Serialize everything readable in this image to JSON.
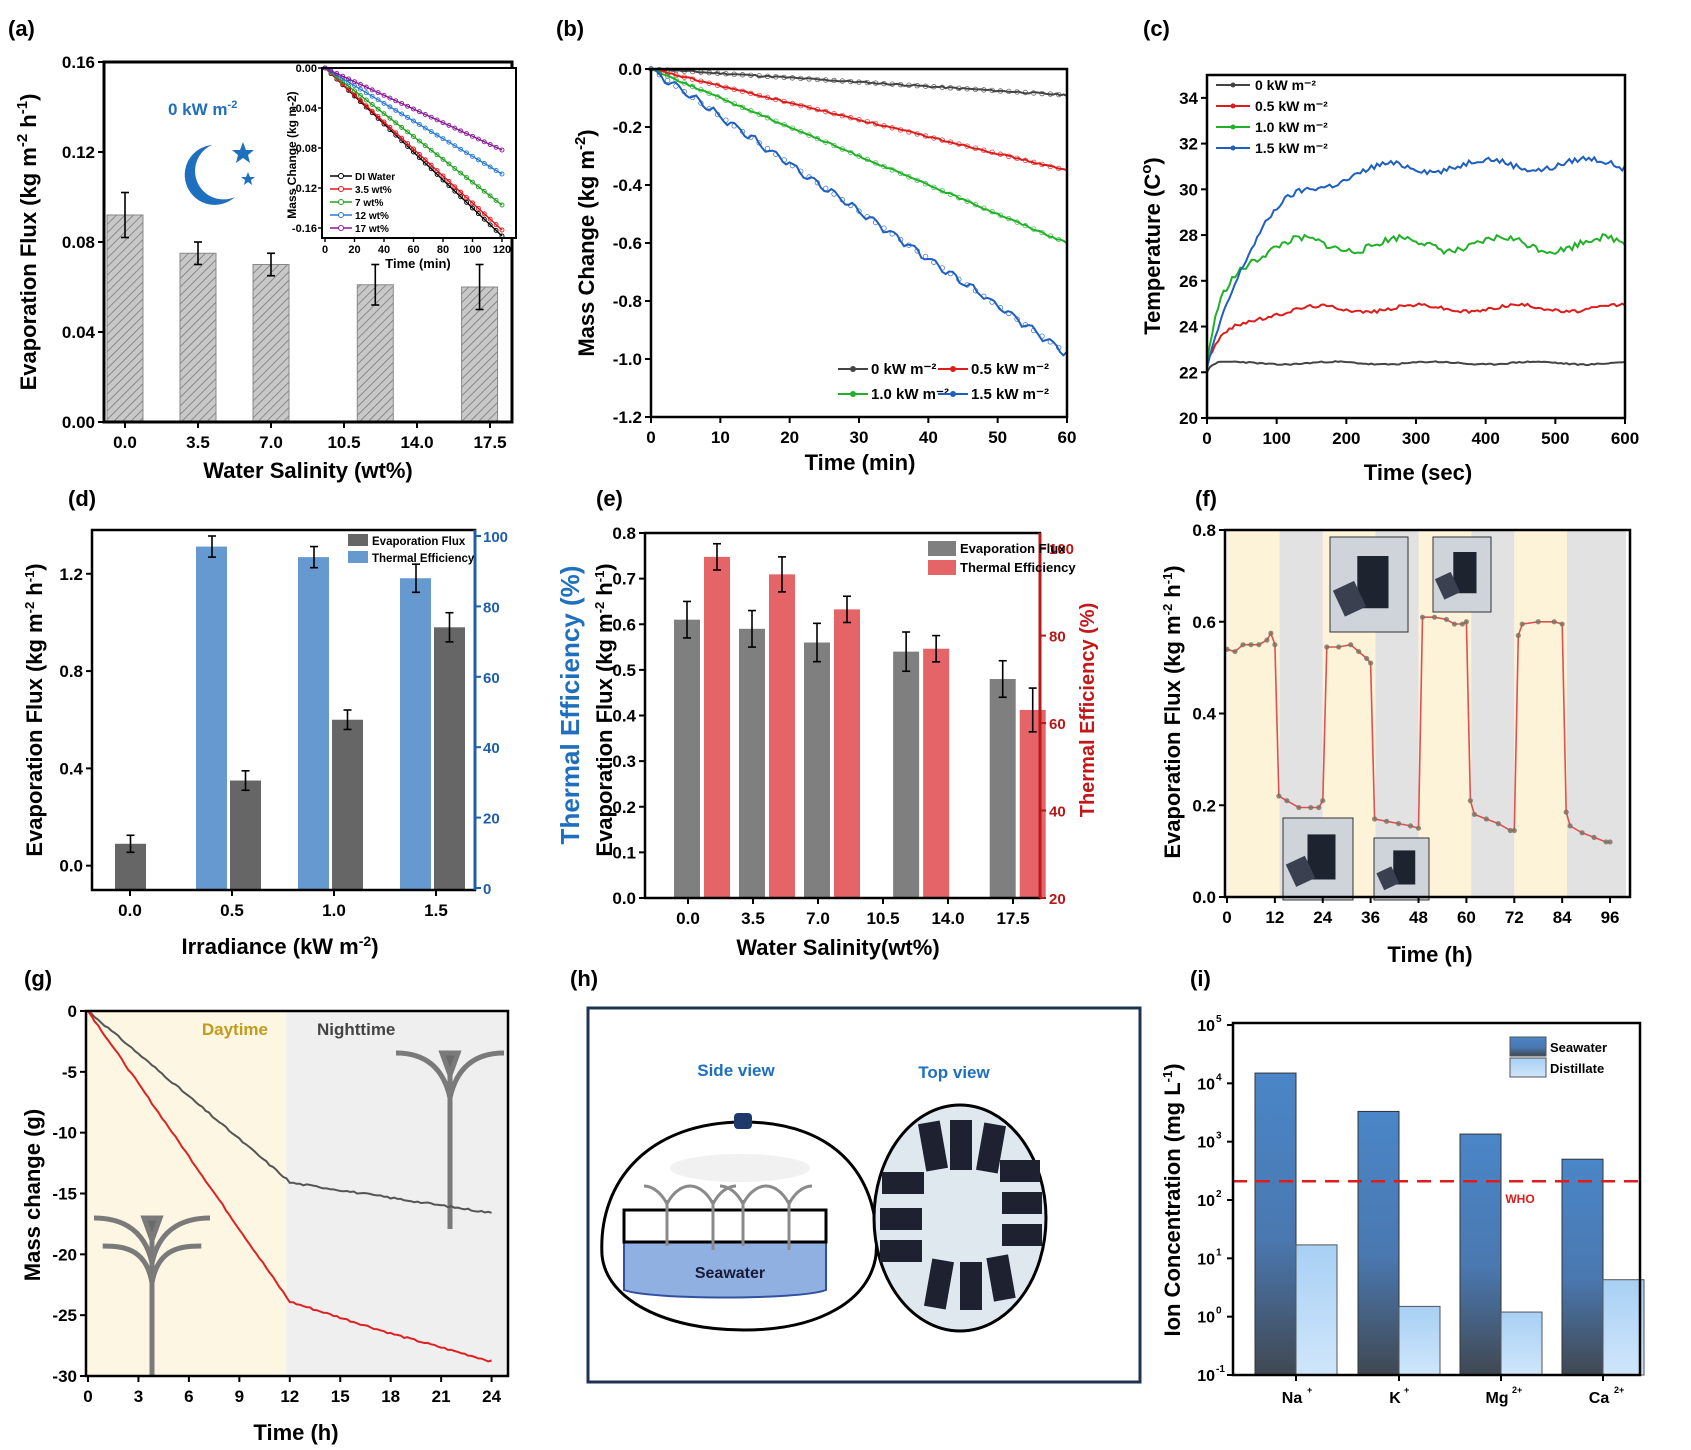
{
  "panels": {
    "a": {
      "label": "(a)"
    },
    "b": {
      "label": "(b)"
    },
    "c": {
      "label": "(c)"
    },
    "d": {
      "label": "(d)"
    },
    "e": {
      "label": "(e)"
    },
    "f": {
      "label": "(f)"
    },
    "g": {
      "label": "(g)"
    },
    "h": {
      "label": "(h)"
    },
    "i": {
      "label": "(i)"
    }
  },
  "chart_data": [
    {
      "id": "a",
      "type": "bar",
      "title": "",
      "annotation": "0 kW m-2",
      "xlabel": "Water Salinity (wt%)",
      "ylabel": "Evaporation Flux (kg m-2 h-1)",
      "xticks": [
        "0.0",
        "3.5",
        "7.0",
        "10.5",
        "14.0",
        "17.5"
      ],
      "xlim": [
        0,
        17.5
      ],
      "yticks": [
        "0.00",
        "0.04",
        "0.08",
        "0.12",
        "0.16"
      ],
      "ylim": [
        0,
        0.16
      ],
      "bars": [
        {
          "x": 0,
          "value": 0.092,
          "err": 0.01
        },
        {
          "x": 3.5,
          "value": 0.075,
          "err": 0.005
        },
        {
          "x": 7.0,
          "value": 0.07,
          "err": 0.005
        },
        {
          "x": 12.0,
          "value": 0.061,
          "err": 0.009
        },
        {
          "x": 17.0,
          "value": 0.06,
          "err": 0.01
        }
      ],
      "inset": {
        "type": "line",
        "xlabel": "Time (min)",
        "ylabel": "Mass Change (kg m-2)",
        "xticks": [
          "0",
          "20",
          "40",
          "60",
          "80",
          "100",
          "120"
        ],
        "xlim": [
          0,
          120
        ],
        "yticks": [
          "0.00",
          "-0.04",
          "-0.08",
          "-0.12",
          "-0.16"
        ],
        "ylim": [
          -0.17,
          0
        ],
        "series": [
          {
            "name": "DI Water",
            "color": "#000000",
            "end": -0.168
          },
          {
            "name": "3.5 wt%",
            "color": "#e8141c",
            "end": -0.162
          },
          {
            "name": "7 wt%",
            "color": "#22a022",
            "end": -0.137
          },
          {
            "name": "12 wt%",
            "color": "#2a7ad8",
            "end": -0.106
          },
          {
            "name": "17 wt%",
            "color": "#8a1a9a",
            "end": -0.082
          }
        ]
      }
    },
    {
      "id": "b",
      "type": "line",
      "xlabel": "Time (min)",
      "ylabel": "Mass Change (kg m-2)",
      "xticks": [
        "0",
        "10",
        "20",
        "30",
        "40",
        "50",
        "60"
      ],
      "xlim": [
        0,
        60
      ],
      "yticks": [
        "0.0",
        "-0.2",
        "-0.4",
        "-0.6",
        "-0.8",
        "-1.0",
        "-1.2"
      ],
      "ylim": [
        -1.2,
        0
      ],
      "legend_position": "bottom-right",
      "series": [
        {
          "name": "0 kW m-2",
          "color": "#444444",
          "end": -0.09
        },
        {
          "name": "0.5 kW m-2",
          "color": "#dd1c1c",
          "end": -0.35
        },
        {
          "name": "1.0 kW m-2",
          "color": "#22b02a",
          "end": -0.6
        },
        {
          "name": "1.5 kW m-2",
          "color": "#1f5fbf",
          "end": -0.98
        }
      ]
    },
    {
      "id": "c",
      "type": "line",
      "xlabel": "Time (sec)",
      "ylabel": "Temperature (C°)",
      "xticks": [
        "0",
        "100",
        "200",
        "300",
        "400",
        "500",
        "600"
      ],
      "xlim": [
        0,
        600
      ],
      "yticks": [
        "20",
        "22",
        "24",
        "26",
        "28",
        "30",
        "32",
        "34"
      ],
      "ylim": [
        20,
        35
      ],
      "legend_position": "top-left",
      "series": [
        {
          "name": "0 kW m-2",
          "color": "#444444",
          "start": 22.0,
          "plateau": 22.4,
          "tau": 5
        },
        {
          "name": "0.5 kW m-2",
          "color": "#dd1c1c",
          "start": 22.5,
          "plateau": 24.8,
          "tau": 40
        },
        {
          "name": "1.0 kW m-2",
          "color": "#22b02a",
          "start": 22.5,
          "plateau": 27.6,
          "tau": 28
        },
        {
          "name": "1.5 kW m-2",
          "color": "#1f5fbf",
          "start": 22.2,
          "plateau": 31.1,
          "tau": 70
        }
      ]
    },
    {
      "id": "d",
      "type": "bar",
      "xlabel": "Irradiance (kW m-2)",
      "ylabel": "Evaporation Flux (kg m-2 h-1)",
      "ylabel_right": "Thermal Efficiency (%)",
      "categories": [
        "0.0",
        "0.5",
        "1.0",
        "1.5"
      ],
      "yticks": [
        "0.0",
        "0.4",
        "0.8",
        "1.2"
      ],
      "ylim": [
        -0.1,
        1.38
      ],
      "yticks_right": [
        "0",
        "20",
        "40",
        "60",
        "80",
        "100"
      ],
      "ylim_right": [
        0,
        100
      ],
      "legend_position": "top-right",
      "series": [
        {
          "name": "Evaporation Flux",
          "color": "#666666",
          "values": [
            0.09,
            0.35,
            0.6,
            0.98
          ],
          "errors": [
            0.035,
            0.04,
            0.04,
            0.06
          ],
          "axis": "left"
        },
        {
          "name": "Thermal Efficiency",
          "color": "#6699d0",
          "values": [
            null,
            97,
            94,
            88
          ],
          "errors": [
            null,
            3,
            3,
            4
          ],
          "axis": "right"
        }
      ]
    },
    {
      "id": "e",
      "type": "bar",
      "xlabel": "Water Salinity(wt%)",
      "ylabel": "Evaporation Flux (kg m-2 h-1)",
      "ylabel_right": "Thermal Efficiency (%)",
      "xticks": [
        "0.0",
        "3.5",
        "7.0",
        "10.5",
        "14.0",
        "17.5"
      ],
      "yticks": [
        "0.0",
        "0.1",
        "0.2",
        "0.3",
        "0.4",
        "0.5",
        "0.6",
        "0.7",
        "0.8"
      ],
      "ylim": [
        0,
        0.8
      ],
      "yticks_right": [
        "20",
        "40",
        "60",
        "80",
        "100"
      ],
      "ylim_right": [
        20,
        103
      ],
      "legend_position": "top-right",
      "series": [
        {
          "name": "Evaporation Flux",
          "color": "#7f7f7f",
          "x": [
            0,
            3.5,
            7,
            11.8,
            17
          ],
          "values": [
            0.61,
            0.59,
            0.56,
            0.54,
            0.48
          ],
          "errors": [
            0.04,
            0.04,
            0.042,
            0.043,
            0.04
          ],
          "axis": "left"
        },
        {
          "name": "Thermal Efficiency",
          "color": "#e46467",
          "x": [
            0,
            3.5,
            7,
            11.8,
            17
          ],
          "values": [
            98,
            94,
            86,
            77,
            63
          ],
          "errors": [
            3,
            4,
            3,
            3,
            5
          ],
          "axis": "right"
        }
      ]
    },
    {
      "id": "f",
      "type": "line",
      "xlabel": "Time (h)",
      "ylabel": "Evaporation Flux (kg m-2 h-1)",
      "xticks": [
        "0",
        "12",
        "24",
        "36",
        "48",
        "60",
        "72",
        "84",
        "96"
      ],
      "xlim": [
        0,
        100
      ],
      "yticks": [
        "0.0",
        "0.2",
        "0.4",
        "0.6",
        "0.8"
      ],
      "ylim": [
        0,
        0.8
      ],
      "day_bands": [
        [
          0,
          12
        ],
        [
          24,
          36
        ],
        [
          48,
          60
        ],
        [
          72,
          84
        ]
      ],
      "night_bands": [
        [
          12,
          24
        ],
        [
          36,
          48
        ],
        [
          60,
          72
        ],
        [
          84,
          100
        ]
      ],
      "series": [
        {
          "name": "flux",
          "color": "#7a7060",
          "line_color": "#e05050",
          "points": [
            [
              0,
              0.54
            ],
            [
              2,
              0.535
            ],
            [
              4,
              0.55
            ],
            [
              6,
              0.55
            ],
            [
              8,
              0.55
            ],
            [
              10,
              0.56
            ],
            [
              11,
              0.575
            ],
            [
              12,
              0.55
            ],
            [
              13,
              0.22
            ],
            [
              15,
              0.21
            ],
            [
              18,
              0.195
            ],
            [
              21,
              0.195
            ],
            [
              23,
              0.195
            ],
            [
              24,
              0.21
            ],
            [
              25,
              0.545
            ],
            [
              28,
              0.545
            ],
            [
              31,
              0.55
            ],
            [
              33,
              0.535
            ],
            [
              35,
              0.52
            ],
            [
              36,
              0.51
            ],
            [
              37,
              0.17
            ],
            [
              40,
              0.165
            ],
            [
              43,
              0.16
            ],
            [
              46,
              0.155
            ],
            [
              48,
              0.15
            ],
            [
              49,
              0.61
            ],
            [
              52,
              0.61
            ],
            [
              55,
              0.605
            ],
            [
              57,
              0.595
            ],
            [
              59,
              0.595
            ],
            [
              60,
              0.6
            ],
            [
              61,
              0.21
            ],
            [
              62,
              0.18
            ],
            [
              65,
              0.17
            ],
            [
              68,
              0.16
            ],
            [
              71,
              0.145
            ],
            [
              72,
              0.145
            ],
            [
              73,
              0.57
            ],
            [
              74,
              0.595
            ],
            [
              78,
              0.6
            ],
            [
              82,
              0.6
            ],
            [
              84,
              0.595
            ],
            [
              85,
              0.185
            ],
            [
              86,
              0.155
            ],
            [
              89,
              0.14
            ],
            [
              92,
              0.13
            ],
            [
              95,
              0.12
            ],
            [
              96,
              0.12
            ]
          ]
        }
      ]
    },
    {
      "id": "g",
      "type": "line",
      "xlabel": "Time (h)",
      "ylabel": "Mass change (g)",
      "xticks": [
        "0",
        "3",
        "6",
        "9",
        "12",
        "15",
        "18",
        "21",
        "24"
      ],
      "xlim": [
        0,
        24.5
      ],
      "yticks": [
        "0",
        "-5",
        "-10",
        "-15",
        "-20",
        "-25",
        "-30"
      ],
      "ylim": [
        -30,
        0
      ],
      "annotations": [
        {
          "text": "Daytime",
          "color": "#c49a1a"
        },
        {
          "text": "Nighttime",
          "color": "#444444"
        }
      ],
      "series": [
        {
          "name": "single-branch",
          "color": "#555555",
          "points": [
            [
              0,
              0
            ],
            [
              11.8,
              -13.8
            ],
            [
              12,
              -14.1
            ],
            [
              24,
              -16.6
            ]
          ]
        },
        {
          "name": "multi-branch",
          "color": "#dd2222",
          "points": [
            [
              0,
              0
            ],
            [
              11.8,
              -23.5
            ],
            [
              12,
              -23.9
            ],
            [
              18,
              -26.5
            ],
            [
              24,
              -28.8
            ]
          ]
        }
      ]
    },
    {
      "id": "i",
      "type": "bar",
      "xlabel": "",
      "ylabel": "Ion Concentration (mg L-1)",
      "categories": [
        "Na+",
        "K+",
        "Mg2+",
        "Ca2+"
      ],
      "yscale": "log",
      "ytick_exponents": [
        "-1",
        "0",
        "1",
        "2",
        "3",
        "4",
        "5"
      ],
      "ylim": [
        0.1,
        100000
      ],
      "legend_position": "top-right",
      "reference_line": {
        "label": "WHO",
        "value": 210,
        "color": "#dd1c1c"
      },
      "series": [
        {
          "name": "Seawater",
          "values": [
            15000,
            3300,
            1350,
            500
          ]
        },
        {
          "name": "Distillate",
          "values": [
            17,
            1.5,
            1.2,
            4.3
          ]
        }
      ]
    }
  ],
  "schematic_h": {
    "side_view_label": "Side view",
    "top_view_label": "Top view",
    "seawater_label": "Seawater"
  },
  "text": {
    "a_annot": "0 kW m",
    "a_annot_sup": "-2",
    "a_ylabel": "Evaporation Flux (kg m",
    "a_xlabel": "Water Salinity (wt%)",
    "inset_xlabel": "Time (min)",
    "inset_ylabel": "Mass Change (kg m",
    "b_xlabel": "Time (min)",
    "b_ylabel": "Mass Change (kg m",
    "c_xlabel": "Time (sec)",
    "c_ylabel": "Temperature (C",
    "d_xlabel": "Irradiance (kW m",
    "d_ylabel": "Evaporation Flux (kg m",
    "d_ylabel_right": "Thermal Efficiency (%)",
    "e_xlabel": "Water Salinity(wt%)",
    "e_ylabel": "Evaporation Flux (kg m",
    "e_ylabel_right": "Thermal Efficiency (%)",
    "f_xlabel": "Time (h)",
    "f_ylabel": "Evaporation Flux (kg m",
    "g_xlabel": "Time (h)",
    "g_ylabel": "Mass change (g)",
    "i_ylabel": "Ion Concentration (mg L",
    "sup_m2": "-2",
    "sup_h1": "-1",
    "h_unit": " h",
    "close_paren": ")",
    "deg": "o"
  }
}
